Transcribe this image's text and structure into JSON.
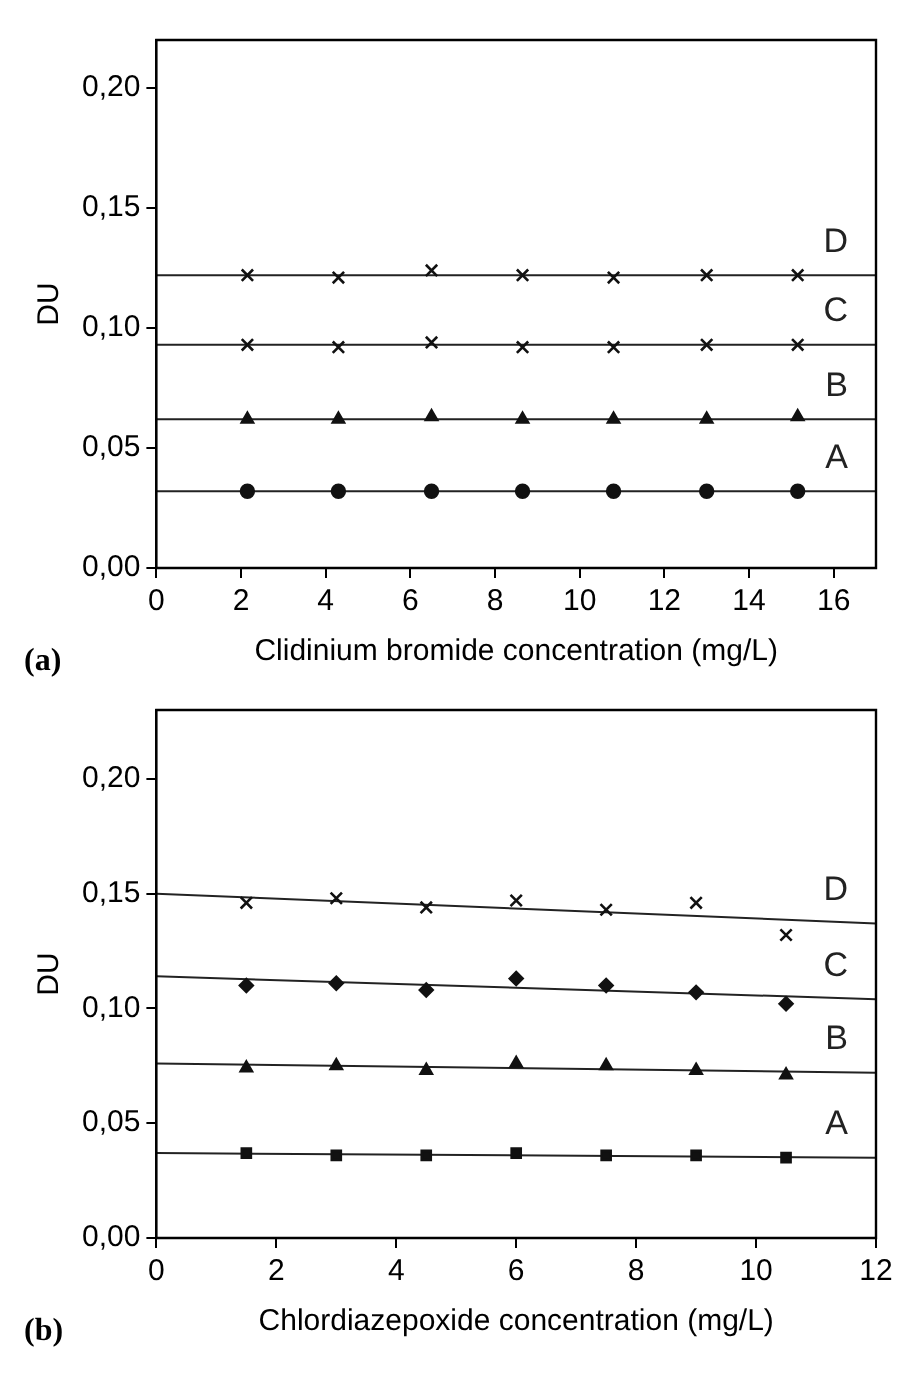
{
  "chart_data": [
    {
      "type": "scatter",
      "xlabel": "Clidinium bromide concentration (mg/L)",
      "ylabel": "DU",
      "xlim": [
        0,
        17
      ],
      "xticks": [
        0,
        2,
        4,
        6,
        8,
        10,
        12,
        14,
        16
      ],
      "ylim": [
        0,
        0.22
      ],
      "yticks": [
        {
          "value": 0,
          "label": "0,00"
        },
        {
          "value": 0.05,
          "label": "0,05"
        },
        {
          "value": 0.1,
          "label": "0,10"
        },
        {
          "value": 0.15,
          "label": "0,15"
        },
        {
          "value": 0.2,
          "label": "0,20"
        }
      ],
      "grid": false,
      "legend": false,
      "series": [
        {
          "type": "scatter",
          "marker": "circle",
          "color": "#111111",
          "x": [
            2.15,
            4.3,
            6.5,
            8.65,
            10.8,
            13,
            15.15
          ],
          "values": [
            0.032,
            0.032,
            0.032,
            0.032,
            0.032,
            0.032,
            0.032
          ]
        },
        {
          "type": "scatter",
          "marker": "triangle",
          "color": "#111111",
          "x": [
            2.15,
            4.3,
            6.5,
            8.65,
            10.8,
            13,
            15.15
          ],
          "values": [
            0.062,
            0.062,
            0.063,
            0.062,
            0.062,
            0.062,
            0.063
          ]
        },
        {
          "type": "scatter",
          "marker": "cross",
          "color": "#111111",
          "x": [
            2.15,
            4.3,
            6.5,
            8.65,
            10.8,
            13,
            15.15
          ],
          "values": [
            0.093,
            0.092,
            0.094,
            0.092,
            0.092,
            0.093,
            0.093
          ]
        },
        {
          "type": "scatter",
          "marker": "cross",
          "color": "#111111",
          "x": [
            2.15,
            4.3,
            6.5,
            8.65,
            10.8,
            13,
            15.15
          ],
          "values": [
            0.122,
            0.121,
            0.124,
            0.122,
            0.121,
            0.122,
            0.122
          ]
        },
        {
          "type": "line",
          "name": "A",
          "color": "#222222",
          "x": [
            0,
            17
          ],
          "values": [
            0.032,
            0.032
          ]
        },
        {
          "type": "line",
          "name": "B",
          "color": "#222222",
          "x": [
            0,
            17
          ],
          "values": [
            0.062,
            0.062
          ]
        },
        {
          "type": "line",
          "name": "C",
          "color": "#222222",
          "x": [
            0,
            17
          ],
          "values": [
            0.093,
            0.093
          ]
        },
        {
          "type": "line",
          "name": "D",
          "color": "#222222",
          "x": [
            0,
            17
          ],
          "values": [
            0.122,
            0.122
          ]
        }
      ],
      "annotations": [
        "(a)"
      ]
    },
    {
      "type": "scatter",
      "xlabel": "Chlordiazepoxide concentration (mg/L)",
      "ylabel": "DU",
      "xlim": [
        0,
        12
      ],
      "xticks": [
        0,
        2,
        4,
        6,
        8,
        10,
        12
      ],
      "ylim": [
        0,
        0.23
      ],
      "yticks": [
        {
          "value": 0,
          "label": "0,00"
        },
        {
          "value": 0.05,
          "label": "0,05"
        },
        {
          "value": 0.1,
          "label": "0,10"
        },
        {
          "value": 0.15,
          "label": "0,15"
        },
        {
          "value": 0.2,
          "label": "0,20"
        }
      ],
      "grid": false,
      "legend": false,
      "series": [
        {
          "type": "scatter",
          "marker": "square",
          "color": "#111111",
          "x": [
            1.5,
            3,
            4.5,
            6,
            7.5,
            9,
            10.5
          ],
          "values": [
            0.037,
            0.036,
            0.036,
            0.037,
            0.036,
            0.036,
            0.035
          ]
        },
        {
          "type": "scatter",
          "marker": "triangle",
          "color": "#111111",
          "x": [
            1.5,
            3,
            4.5,
            6,
            7.5,
            9,
            10.5
          ],
          "values": [
            0.074,
            0.075,
            0.073,
            0.076,
            0.075,
            0.073,
            0.071
          ]
        },
        {
          "type": "scatter",
          "marker": "diamond",
          "color": "#111111",
          "x": [
            1.5,
            3,
            4.5,
            6,
            7.5,
            9,
            10.5
          ],
          "values": [
            0.11,
            0.111,
            0.108,
            0.113,
            0.11,
            0.107,
            0.102
          ]
        },
        {
          "type": "scatter",
          "marker": "cross",
          "color": "#111111",
          "x": [
            1.5,
            3,
            4.5,
            6,
            7.5,
            9,
            10.5
          ],
          "values": [
            0.146,
            0.148,
            0.144,
            0.147,
            0.143,
            0.146,
            0.132
          ]
        },
        {
          "type": "line",
          "name": "A",
          "color": "#222222",
          "x": [
            0,
            12
          ],
          "values": [
            0.037,
            0.035
          ]
        },
        {
          "type": "line",
          "name": "B",
          "color": "#222222",
          "x": [
            0,
            12
          ],
          "values": [
            0.076,
            0.072
          ]
        },
        {
          "type": "line",
          "name": "C",
          "color": "#222222",
          "x": [
            0,
            12
          ],
          "values": [
            0.114,
            0.104
          ]
        },
        {
          "type": "line",
          "name": "D",
          "color": "#222222",
          "x": [
            0,
            12
          ],
          "values": [
            0.15,
            0.137
          ]
        }
      ],
      "annotations": [
        "(b)"
      ]
    }
  ]
}
